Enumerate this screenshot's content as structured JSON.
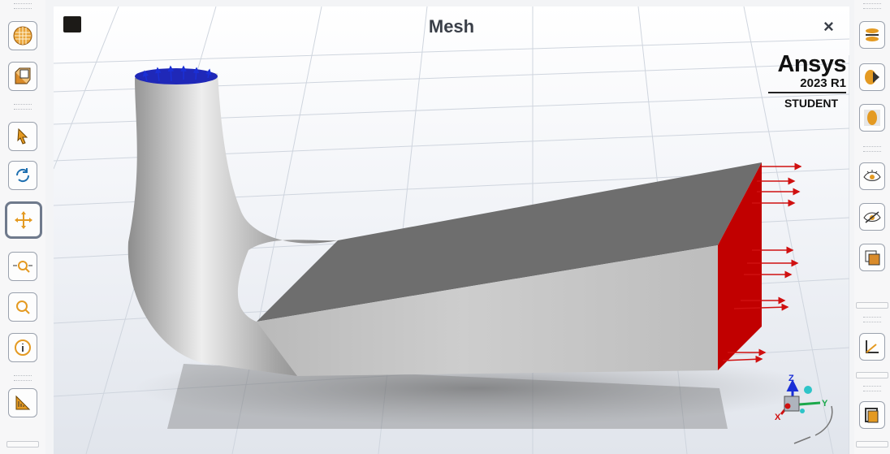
{
  "window": {
    "title": "Mesh",
    "close_label": "×"
  },
  "brand": {
    "name": "Ansys",
    "version": "2023 R1",
    "edition": "STUDENT"
  },
  "left_toolbar": {
    "items": [
      {
        "name": "mesh-sphere-icon"
      },
      {
        "name": "cube-view-icon"
      },
      {
        "name": "select-arrow-icon"
      },
      {
        "name": "rotate-icon"
      },
      {
        "name": "pan-icon",
        "active": true
      },
      {
        "name": "zoom-box-icon"
      },
      {
        "name": "zoom-fit-icon"
      },
      {
        "name": "info-icon"
      },
      {
        "name": "display-options-icon"
      }
    ]
  },
  "right_toolbar": {
    "items": [
      {
        "name": "section-plane-icon"
      },
      {
        "name": "clip-surface-icon"
      },
      {
        "name": "show-mesh-icon"
      },
      {
        "name": "show-eye-icon"
      },
      {
        "name": "hide-eye-icon"
      },
      {
        "name": "layer-icon"
      },
      {
        "name": "axis-icon"
      },
      {
        "name": "window-frame-icon"
      }
    ]
  },
  "colors": {
    "inlet": "#1f28b8",
    "outlet": "#c10000",
    "body": "#9c9c9c",
    "arrow_red": "#d01010",
    "arrow_blue": "#1a2fd6"
  },
  "triad": {
    "z_label": "Z",
    "y_label": "Y",
    "x_label": "X"
  }
}
